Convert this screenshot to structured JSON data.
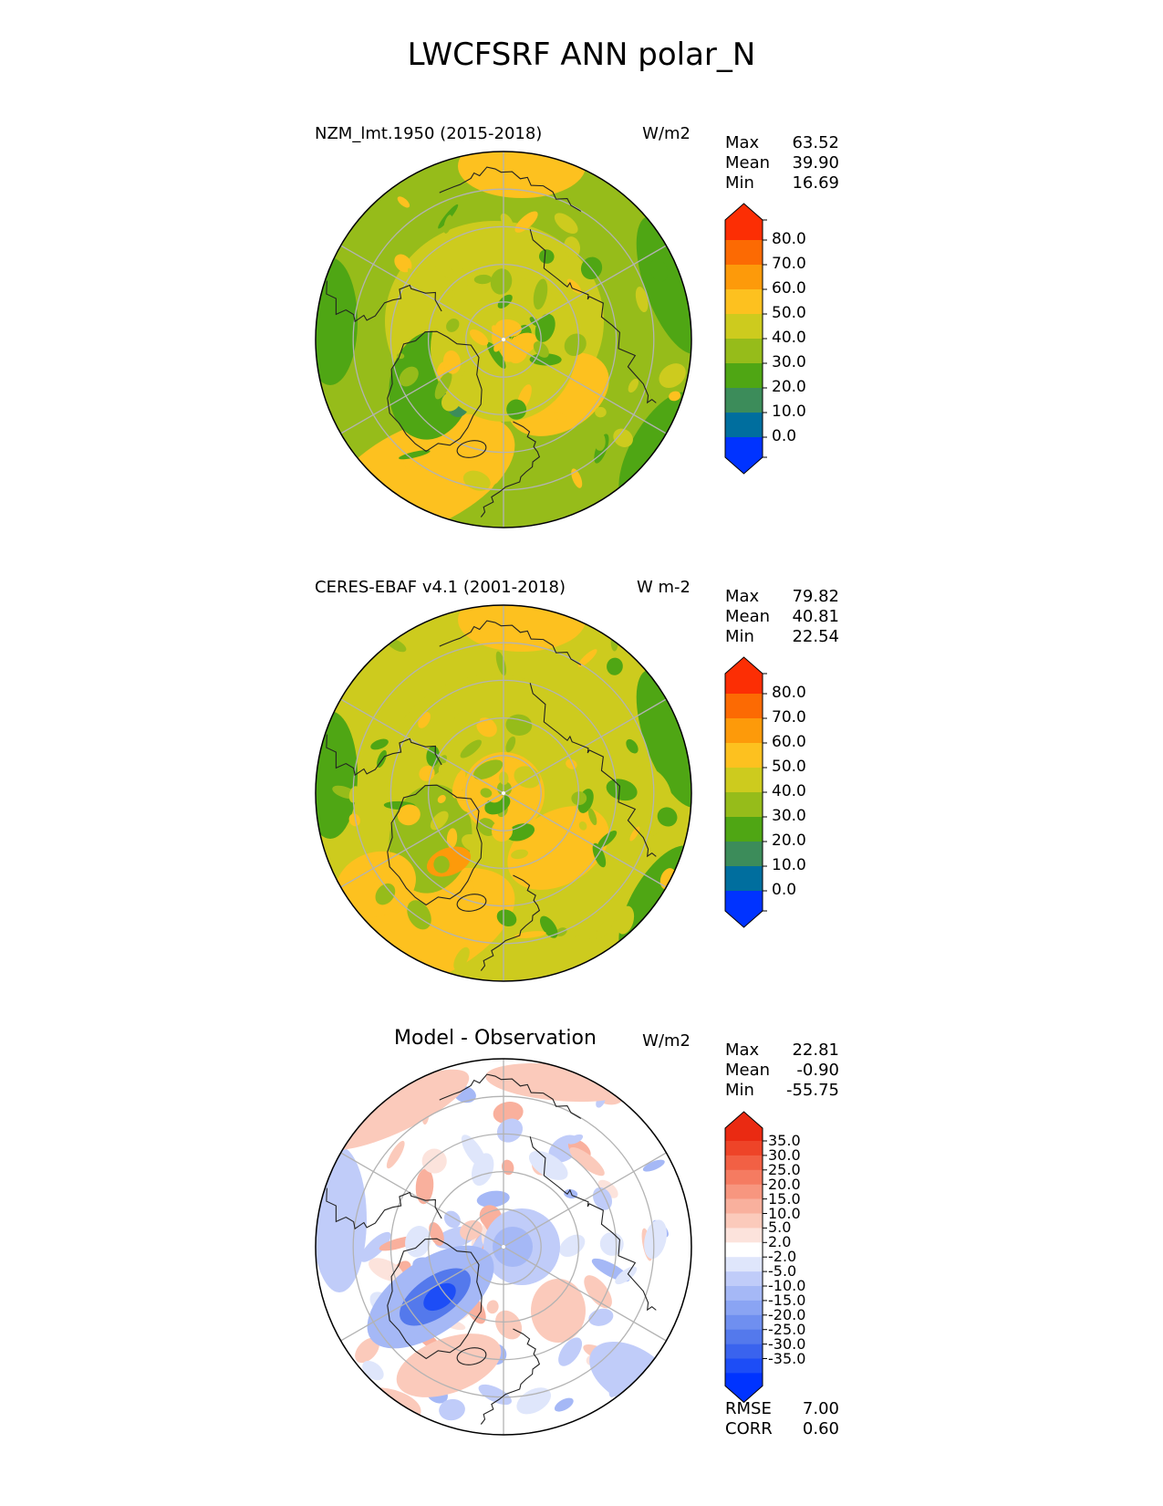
{
  "title": "LWCFSRF ANN polar_N",
  "panels": [
    {
      "title": "NZM_lmt.1950 (2015-2018)",
      "units": "W/m2",
      "stats": [
        {
          "label": "Max",
          "value": "63.52"
        },
        {
          "label": "Mean",
          "value": "39.90"
        },
        {
          "label": "Min",
          "value": "16.69"
        }
      ],
      "colorbar_ticks": [
        "80.0",
        "70.0",
        "60.0",
        "50.0",
        "40.0",
        "30.0",
        "20.0",
        "10.0",
        "0.0"
      ]
    },
    {
      "title": "CERES-EBAF v4.1 (2001-2018)",
      "units": "W m-2",
      "stats": [
        {
          "label": "Max",
          "value": "79.82"
        },
        {
          "label": "Mean",
          "value": "40.81"
        },
        {
          "label": "Min",
          "value": "22.54"
        }
      ],
      "colorbar_ticks": [
        "80.0",
        "70.0",
        "60.0",
        "50.0",
        "40.0",
        "30.0",
        "20.0",
        "10.0",
        "0.0"
      ]
    },
    {
      "title": "Model - Observation",
      "units": "W/m2",
      "stats": [
        {
          "label": "Max",
          "value": "22.81"
        },
        {
          "label": "Mean",
          "value": "-0.90"
        },
        {
          "label": "Min",
          "value": "-55.75"
        }
      ],
      "colorbar_ticks": [
        "35.0",
        "30.0",
        "25.0",
        "20.0",
        "15.0",
        "10.0",
        "5.0",
        "2.0",
        "-2.0",
        "-5.0",
        "-10.0",
        "-15.0",
        "-20.0",
        "-25.0",
        "-30.0",
        "-35.0"
      ],
      "metrics": [
        {
          "label": "RMSE",
          "value": "7.00"
        },
        {
          "label": "CORR",
          "value": "0.60"
        }
      ]
    }
  ],
  "colors": {
    "abs_scale": [
      "#0033ff",
      "#006e9e",
      "#3c8c5a",
      "#4fa614",
      "#96bc1a",
      "#cdcb1e",
      "#fdc11f",
      "#fd9a0a",
      "#fc6a03",
      "#fc2e04"
    ],
    "diff_scale": [
      "#0033ff",
      "#1d4df6",
      "#3a63ee",
      "#5479ec",
      "#6f8ff0",
      "#8aa4f3",
      "#a5b8f6",
      "#c0ccf9",
      "#dfe6fb",
      "#ffffff",
      "#fce3dc",
      "#fbcabb",
      "#f9b09d",
      "#f7967f",
      "#f57b61",
      "#f26044",
      "#ee4428",
      "#ea2a12"
    ]
  },
  "chart_data": [
    {
      "type": "heatmap",
      "title": "NZM_lmt.1950 (2015-2018)",
      "projection": "north polar stereographic",
      "units": "W/m2",
      "levels": [
        0,
        10,
        20,
        30,
        40,
        50,
        60,
        70,
        80
      ],
      "extend": "both",
      "stats": {
        "max": 63.52,
        "mean": 39.9,
        "min": 16.69
      },
      "dominant_bands": [
        "40-50 (polar cap and Pacific)",
        "50-60 (N. Atlantic, N. Pacific rim)",
        "30-40 (subpolar land and ocean)",
        "20-30 (Greenland interior)"
      ]
    },
    {
      "type": "heatmap",
      "title": "CERES-EBAF v4.1 (2001-2018)",
      "projection": "north polar stereographic",
      "units": "W m-2",
      "levels": [
        0,
        10,
        20,
        30,
        40,
        50,
        60,
        70,
        80
      ],
      "extend": "both",
      "stats": {
        "max": 79.82,
        "mean": 40.81,
        "min": 22.54
      }
    },
    {
      "type": "heatmap",
      "title": "Model - Observation",
      "projection": "north polar stereographic",
      "units": "W/m2",
      "levels": [
        -35,
        -30,
        -25,
        -20,
        -15,
        -10,
        -5,
        -2,
        2,
        5,
        10,
        15,
        20,
        25,
        30,
        35
      ],
      "extend": "both",
      "stats": {
        "max": 22.81,
        "mean": -0.9,
        "min": -55.75
      },
      "metrics": {
        "rmse": 7.0,
        "corr": 0.6
      }
    }
  ]
}
